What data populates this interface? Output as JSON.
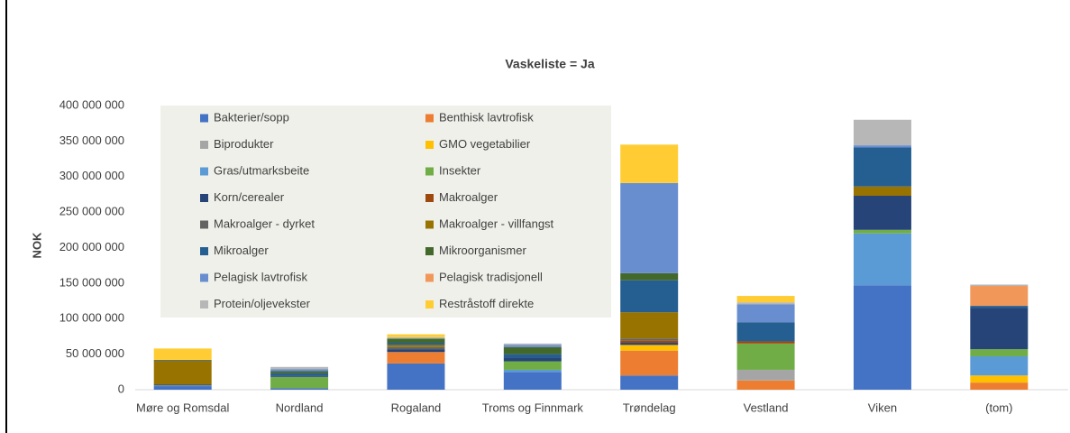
{
  "chart_data": {
    "type": "stacked_bar",
    "title": "Vaskeliste = Ja",
    "y_label": "NOK",
    "categories": [
      "Møre og Romsdal",
      "Nordland",
      "Rogaland",
      "Troms og Finnmark",
      "Trøndelag",
      "Vestland",
      "Viken",
      "(tom)"
    ],
    "series": [
      {
        "name": "Bakterier/sopp",
        "color": "#4472c4",
        "values": [
          5000000,
          2000000,
          37000000,
          25000000,
          20000000,
          0,
          147000000,
          0
        ]
      },
      {
        "name": "Benthisk lavtrofisk",
        "color": "#ed7d31",
        "values": [
          0,
          0,
          16000000,
          0,
          35000000,
          13000000,
          0,
          10000000
        ]
      },
      {
        "name": "Biprodukter",
        "color": "#a5a5a5",
        "values": [
          0,
          0,
          0,
          0,
          0,
          15000000,
          0,
          0
        ]
      },
      {
        "name": "GMO vegetabilier",
        "color": "#ffc000",
        "values": [
          0,
          0,
          0,
          0,
          8000000,
          0,
          0,
          10000000
        ]
      },
      {
        "name": "Gras/utmarksbeite",
        "color": "#5b9bd5",
        "values": [
          1000000,
          0,
          0,
          3000000,
          0,
          0,
          73000000,
          27000000
        ]
      },
      {
        "name": "Insekter",
        "color": "#70ad47",
        "values": [
          0,
          16000000,
          0,
          12000000,
          0,
          37000000,
          5000000,
          10000000
        ]
      },
      {
        "name": "Korn/cerealer",
        "color": "#264478",
        "values": [
          1000000,
          2000000,
          4000000,
          5000000,
          3000000,
          0,
          48000000,
          58000000
        ]
      },
      {
        "name": "Makroalger",
        "color": "#9e480e",
        "values": [
          0,
          0,
          0,
          0,
          3000000,
          3000000,
          0,
          0
        ]
      },
      {
        "name": "Makroalger - dyrket",
        "color": "#636363",
        "values": [
          0,
          0,
          3000000,
          0,
          3000000,
          0,
          0,
          0
        ]
      },
      {
        "name": "Makroalger - villfangst",
        "color": "#997300",
        "values": [
          34000000,
          0,
          3000000,
          0,
          37000000,
          0,
          13000000,
          0
        ]
      },
      {
        "name": "Mikroalger",
        "color": "#255e91",
        "values": [
          1000000,
          3000000,
          3000000,
          5000000,
          45000000,
          27000000,
          55000000,
          3000000
        ]
      },
      {
        "name": "Mikroorganismer",
        "color": "#43682b",
        "values": [
          0,
          3000000,
          6000000,
          10000000,
          10000000,
          0,
          0,
          0
        ]
      },
      {
        "name": "Pelagisk lavtrofisk",
        "color": "#698ed0",
        "values": [
          0,
          3000000,
          0,
          3000000,
          127000000,
          25000000,
          3000000,
          0
        ]
      },
      {
        "name": "Pelagisk tradisjonell",
        "color": "#f1975a",
        "values": [
          0,
          0,
          0,
          0,
          0,
          0,
          0,
          28000000
        ]
      },
      {
        "name": "Protein/oljevekster",
        "color": "#b7b7b7",
        "values": [
          0,
          3000000,
          2000000,
          2000000,
          0,
          3000000,
          36000000,
          2000000
        ]
      },
      {
        "name": "Restråstoff direkte",
        "color": "#ffcd33",
        "values": [
          16000000,
          0,
          4000000,
          0,
          54000000,
          9000000,
          0,
          0
        ]
      }
    ],
    "ylim": [
      0,
      400000000
    ],
    "yticks": [
      0,
      {
        "value": 50000000,
        "label": "50 000 000"
      },
      {
        "value": 100000000,
        "label": "100 000 000"
      },
      {
        "value": 150000000,
        "label": "150 000 000"
      },
      {
        "value": 200000000,
        "label": "200 000 000"
      },
      {
        "value": 250000000,
        "label": "250 000 000"
      },
      {
        "value": 300000000,
        "label": "300 000 000"
      },
      {
        "value": 350000000,
        "label": "350 000 000"
      },
      {
        "value": 400000000,
        "label": "400 000 000"
      }
    ],
    "legend": "top-left",
    "grid": false
  }
}
